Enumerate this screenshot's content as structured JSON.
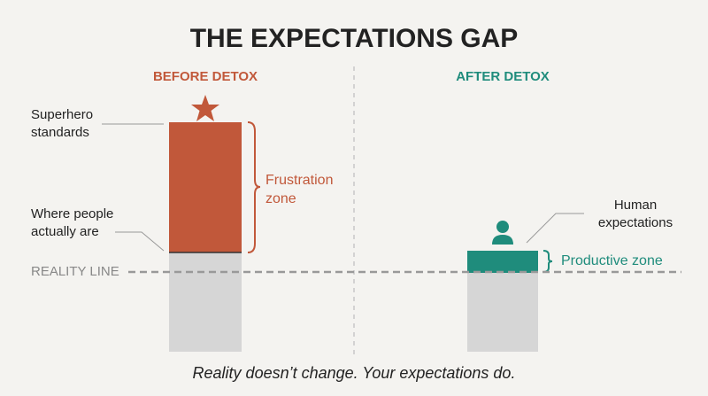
{
  "title": "THE EXPECTATIONS GAP",
  "before": {
    "heading": "BEFORE DETOX",
    "top_label": [
      "Superhero",
      "standards"
    ],
    "bottom_label": [
      "Where people",
      "actually are"
    ],
    "zone": [
      "Frustration",
      "zone"
    ]
  },
  "after": {
    "heading": "AFTER DETOX",
    "top_label": [
      "Human",
      "expectations"
    ],
    "zone": "Productive zone"
  },
  "reality_line": "REALITY LINE",
  "footer": "Reality doesn’t change. Your expectations do."
}
